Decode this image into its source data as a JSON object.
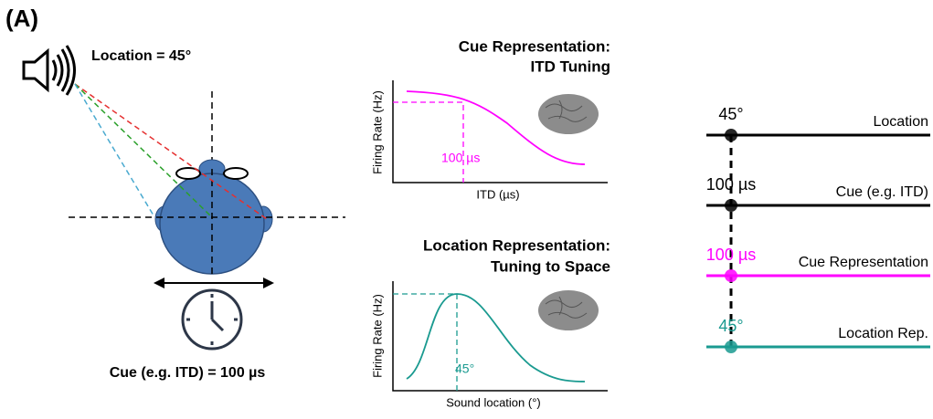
{
  "panel_label": "(A)",
  "left": {
    "location_label": "Location = 45°",
    "cue_label": "Cue (e.g. ITD) = 100 µs"
  },
  "middle": [
    {
      "title": [
        "Cue Representation:",
        "ITD Tuning"
      ],
      "y_label": "Firing Rate (Hz)",
      "x_label": "ITD (µs)",
      "marker_label": "100 µs"
    },
    {
      "title": [
        "Location Representation:",
        "Tuning to Space"
      ],
      "y_label": "Firing Rate (Hz)",
      "x_label": "Sound location (°)",
      "marker_label": "45°"
    }
  ],
  "right": {
    "rows": [
      {
        "value": "45°",
        "name": "Location"
      },
      {
        "value": "100 µs",
        "name": "Cue (e.g. ITD)"
      },
      {
        "value": "100 µs",
        "name": "Cue Representation"
      },
      {
        "value": "45°",
        "name": "Location Rep."
      }
    ]
  }
}
